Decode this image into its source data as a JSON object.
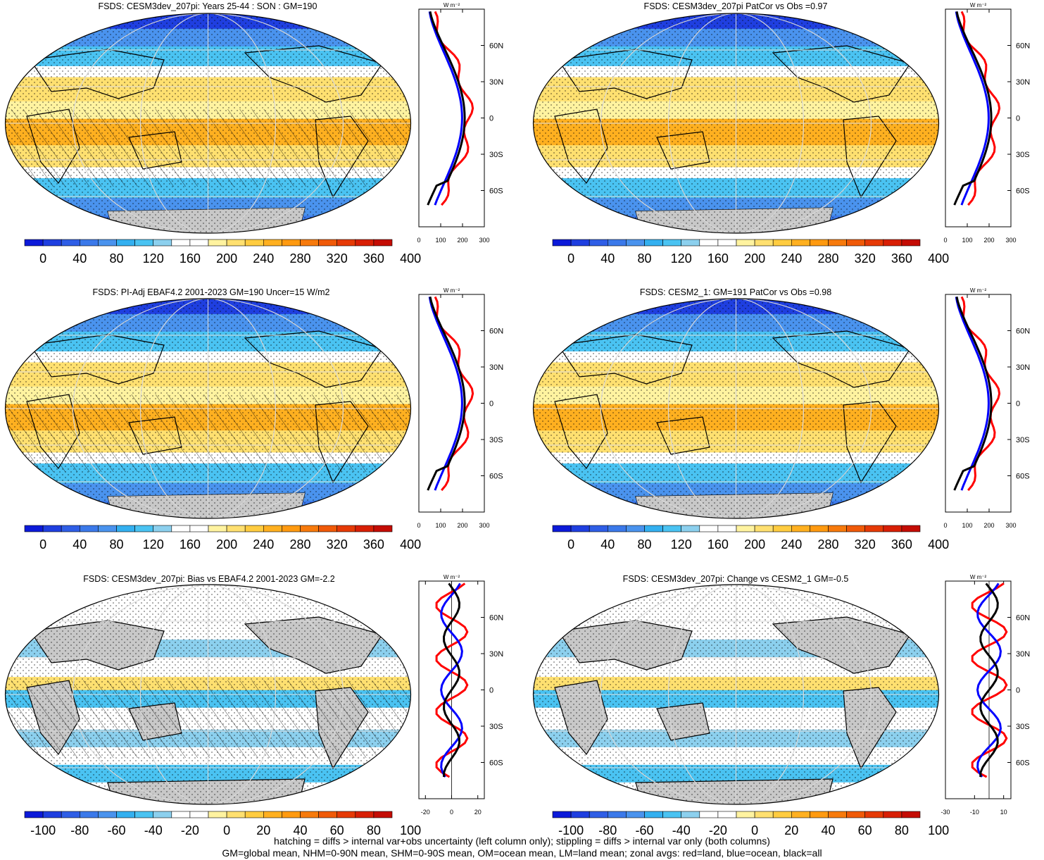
{
  "footer": {
    "line1": "hatching = diffs > internal var+obs uncertainty (left column only); stippling = diffs > internal var only (both columns)",
    "line2": "GM=global mean, NHM=0-90N mean, SHM=0-90S mean, OM=ocean mean, LM=land mean; zonal avgs: red=land, blue=ocean, black=all"
  },
  "zonal_units": "W m⁻²",
  "lat_labels": [
    "60N",
    "30N",
    "0",
    "30S",
    "60S"
  ],
  "palettes": {
    "full": [
      "#0c1ad9",
      "#1f3fe0",
      "#2f5ee6",
      "#3b79ea",
      "#4a93ee",
      "#33b0f0",
      "#4ac3f2",
      "#8cd0ee",
      "#ffffff",
      "#ffffff",
      "#fff3a0",
      "#ffe070",
      "#ffcc40",
      "#ffb020",
      "#ff9a10",
      "#f77a0c",
      "#f05a08",
      "#e63a06",
      "#d81f05",
      "#c40c04"
    ],
    "diff": [
      "#0c1ad9",
      "#1f3fe0",
      "#2f5ee6",
      "#3b79ea",
      "#4a93ee",
      "#33b0f0",
      "#4ac3f2",
      "#8cd0ee",
      "#ffffff",
      "#ffffff",
      "#fff3a0",
      "#ffe070",
      "#ffcc40",
      "#ffb020",
      "#ff9a10",
      "#f77a0c",
      "#f05a08",
      "#e63a06",
      "#d81f05",
      "#c40c04"
    ]
  },
  "colors": {
    "land": "#ff0000",
    "ocean": "#0000ff",
    "all": "#000000",
    "landmask": "#c8c8c8"
  },
  "panels": [
    {
      "title": "FSDS: CESM3dev_207pi: Years 25-44 : SON : GM=190",
      "palette": "full",
      "cbar_labels": [
        "0",
        "40",
        "80",
        "120",
        "160",
        "200",
        "240",
        "280",
        "320",
        "360",
        "400"
      ],
      "zonal_ticks": [
        "0",
        "100",
        "200",
        "300"
      ],
      "zonal_xlim": [
        0,
        300
      ],
      "zonal_zero": null,
      "hatched": true
    },
    {
      "title": "FSDS: CESM3dev_207pi PatCor vs Obs =0.97",
      "palette": "full",
      "cbar_labels": [
        "0",
        "40",
        "80",
        "120",
        "160",
        "200",
        "240",
        "280",
        "320",
        "360",
        "400"
      ],
      "zonal_ticks": [
        "0",
        "100",
        "200",
        "300"
      ],
      "zonal_xlim": [
        0,
        300
      ],
      "zonal_zero": null,
      "hatched": false
    },
    {
      "title": "FSDS: PI-Adj EBAF4.2 2001-2023 GM=190 Uncer=15 W/m2",
      "palette": "full",
      "cbar_labels": [
        "0",
        "40",
        "80",
        "120",
        "160",
        "200",
        "240",
        "280",
        "320",
        "360",
        "400"
      ],
      "zonal_ticks": [
        "0",
        "100",
        "200",
        "300"
      ],
      "zonal_xlim": [
        0,
        300
      ],
      "zonal_zero": null,
      "hatched": true
    },
    {
      "title": "FSDS: CESM2_1: GM=191 PatCor vs Obs =0.98",
      "palette": "full",
      "cbar_labels": [
        "0",
        "40",
        "80",
        "120",
        "160",
        "200",
        "240",
        "280",
        "320",
        "360",
        "400"
      ],
      "zonal_ticks": [
        "0",
        "100",
        "200",
        "300"
      ],
      "zonal_xlim": [
        0,
        300
      ],
      "zonal_zero": null,
      "hatched": false
    },
    {
      "title": "FSDS: CESM3dev_207pi: Bias vs EBAF4.2 2001-2023  GM=-2.2",
      "palette": "diff",
      "cbar_labels": [
        "-100",
        "-80",
        "-60",
        "-40",
        "-20",
        "0",
        "20",
        "40",
        "60",
        "80",
        "100"
      ],
      "zonal_ticks": [
        "-20",
        "0",
        "20"
      ],
      "zonal_xlim": [
        -25,
        25
      ],
      "zonal_zero": 0,
      "hatched": true
    },
    {
      "title": "FSDS: CESM3dev_207pi: Change vs CESM2_1 GM=-0.5",
      "palette": "diff",
      "cbar_labels": [
        "-100",
        "-80",
        "-60",
        "-40",
        "-20",
        "0",
        "20",
        "40",
        "60",
        "80",
        "100"
      ],
      "zonal_ticks": [
        "-30",
        "-10",
        "10"
      ],
      "zonal_xlim": [
        -30,
        15
      ],
      "zonal_zero": 0,
      "hatched": false
    }
  ]
}
